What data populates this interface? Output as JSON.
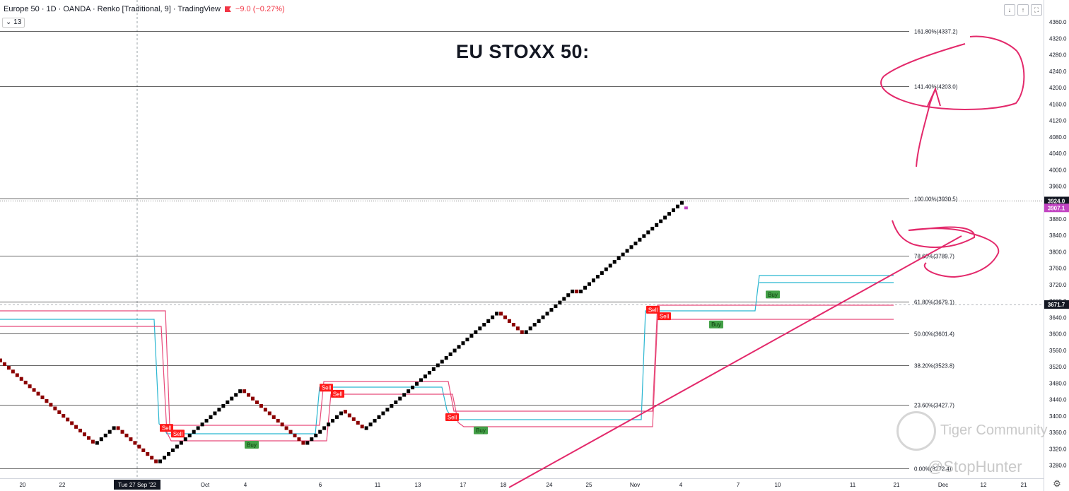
{
  "header": {
    "symbol": "Europe 50 · 1D · OANDA · Renko [Traditional, 9] · TradingView",
    "change": "−9.0 (−0.27%)",
    "interval_badge": "13"
  },
  "toolbar": {
    "icons": [
      "arrow-down-icon",
      "arrow-up-icon",
      "fullscreen-icon"
    ]
  },
  "annotation_title": "EU STOXX 50:",
  "watermark": {
    "name": "Tiger Community",
    "handle": "@StopHunter"
  },
  "colors": {
    "up_brick": "#000000",
    "down_brick": "#8b0000",
    "sell": "#ff1a1a",
    "buy": "#43a047",
    "cyan_line": "#29b6d1",
    "pink_line": "#e84a7a",
    "fib_line": "#333333",
    "annotation": "#e3296b",
    "last_price": "#131722",
    "prev_close": "#c243c2"
  },
  "chart_data": {
    "type": "renko",
    "instrument": "Europe 50",
    "y_axis": {
      "ylim": [
        3250,
        4375
      ],
      "ticks": [
        3280,
        3320,
        3360,
        3400,
        3440,
        3480,
        3520,
        3560,
        3600,
        3640,
        3680,
        3720,
        3760,
        3800,
        3840,
        3880,
        3920,
        3960,
        4000,
        4040,
        4080,
        4120,
        4160,
        4200,
        4240,
        4280,
        4320,
        4360
      ]
    },
    "x_axis": {
      "ticks": [
        "20",
        "22",
        "Tue 27 Sep '22",
        "Oct",
        "4",
        "6",
        "11",
        "13",
        "17",
        "18",
        "24",
        "25",
        "Nov",
        "4",
        "7",
        "10",
        "11",
        "21",
        "Dec",
        "12",
        "21"
      ],
      "highlighted": "Tue 27 Sep '22"
    },
    "fibonacci": [
      {
        "label": "0.00%(3272.4)",
        "value": 3272.4
      },
      {
        "label": "23.60%(3427.7)",
        "value": 3427.7
      },
      {
        "label": "38.20%(3523.8)",
        "value": 3523.8
      },
      {
        "label": "50.00%(3601.4)",
        "value": 3601.4
      },
      {
        "label": "61.80%(3679.1)",
        "value": 3679.1
      },
      {
        "label": "78.60%(3789.7)",
        "value": 3789.7
      },
      {
        "label": "100.00%(3930.5)",
        "value": 3930.5
      },
      {
        "label": "141.40%(4203.0)",
        "value": 4203.0
      },
      {
        "label": "161.80%(4337.2)",
        "value": 4337.2
      }
    ],
    "price_labels": {
      "last": {
        "label": "3924.0",
        "value": 3924.0
      },
      "prev_close": {
        "label": "3907.1",
        "value": 3907.1
      },
      "crosshair": {
        "label": "3671.7",
        "value": 3671.7
      }
    },
    "renko_legs": [
      {
        "direction": "down",
        "start": 3540,
        "end": 3330
      },
      {
        "direction": "up",
        "start": 3330,
        "end": 3375
      },
      {
        "direction": "down",
        "start": 3375,
        "end": 3285
      },
      {
        "direction": "up",
        "start": 3285,
        "end": 3465
      },
      {
        "direction": "down",
        "start": 3465,
        "end": 3330
      },
      {
        "direction": "up",
        "start": 3330,
        "end": 3415
      },
      {
        "direction": "down",
        "start": 3415,
        "end": 3366
      },
      {
        "direction": "up",
        "start": 3366,
        "end": 3654
      },
      {
        "direction": "down",
        "start": 3654,
        "end": 3600
      },
      {
        "direction": "up",
        "start": 3600,
        "end": 3708
      },
      {
        "direction": "down",
        "start": 3708,
        "end": 3699
      },
      {
        "direction": "up",
        "start": 3699,
        "end": 3924
      }
    ],
    "signals": [
      {
        "type": "Sell",
        "value": 3372
      },
      {
        "type": "Sell",
        "value": 3358
      },
      {
        "type": "Buy",
        "value": 3331
      },
      {
        "type": "Sell",
        "value": 3470
      },
      {
        "type": "Sell",
        "value": 3455
      },
      {
        "type": "Sell",
        "value": 3398
      },
      {
        "type": "Buy",
        "value": 3366
      },
      {
        "type": "Sell",
        "value": 3660
      },
      {
        "type": "Sell",
        "value": 3644
      },
      {
        "type": "Buy",
        "value": 3624
      },
      {
        "type": "Buy",
        "value": 3697
      }
    ]
  }
}
